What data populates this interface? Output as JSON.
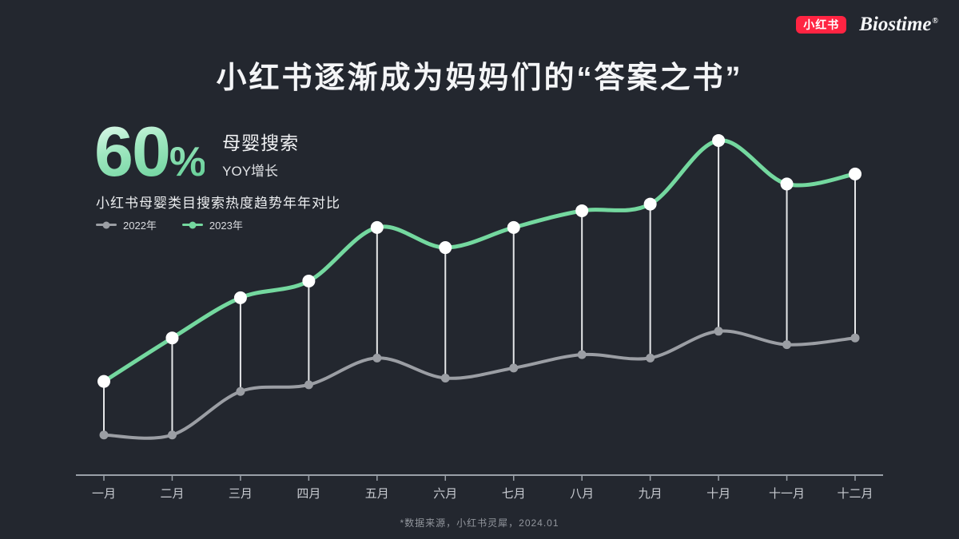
{
  "title": "小红书逐渐成为妈妈们的“答案之书”",
  "header": {
    "xiaohongshu_logo": "小红书",
    "biostime_logo": "Biostime",
    "registered_mark": "®"
  },
  "stat": {
    "number": "60",
    "percent": "%",
    "label_primary": "母婴搜索",
    "label_secondary": "YOY增长"
  },
  "subtitle": "小红书母婴类目搜索热度趋势年年对比",
  "legend": [
    {
      "label": "2022年",
      "color": "#9b9ea4"
    },
    {
      "label": "2023年",
      "color": "#74d89f"
    }
  ],
  "footer": "*数据来源，小红书灵犀，2024.01",
  "colors": {
    "background": "#23272f",
    "accent_green": "#74d89f",
    "line_gray": "#9b9ea4",
    "drop_line": "#f0f1f3",
    "brand_red": "#ff2442",
    "axis": "#9aa0a8",
    "tick_label": "#c7cad0"
  },
  "chart_data": {
    "type": "line",
    "title": "小红书母婴类目搜索热度趋势年年对比",
    "categories": [
      "一月",
      "二月",
      "三月",
      "四月",
      "五月",
      "六月",
      "七月",
      "八月",
      "九月",
      "十月",
      "十一月",
      "十二月"
    ],
    "series": [
      {
        "name": "2022年",
        "color": "#9b9ea4",
        "values": [
          12,
          12,
          25,
          27,
          35,
          29,
          32,
          36,
          35,
          43,
          39,
          41
        ]
      },
      {
        "name": "2023年",
        "color": "#74d89f",
        "values": [
          28,
          41,
          53,
          58,
          74,
          68,
          74,
          79,
          81,
          100,
          87,
          90
        ]
      }
    ],
    "xlabel": "",
    "ylabel": "",
    "ylim": [
      0,
      105
    ],
    "grid": false,
    "legend_position": "top-left",
    "drop_lines_between_series": true
  }
}
